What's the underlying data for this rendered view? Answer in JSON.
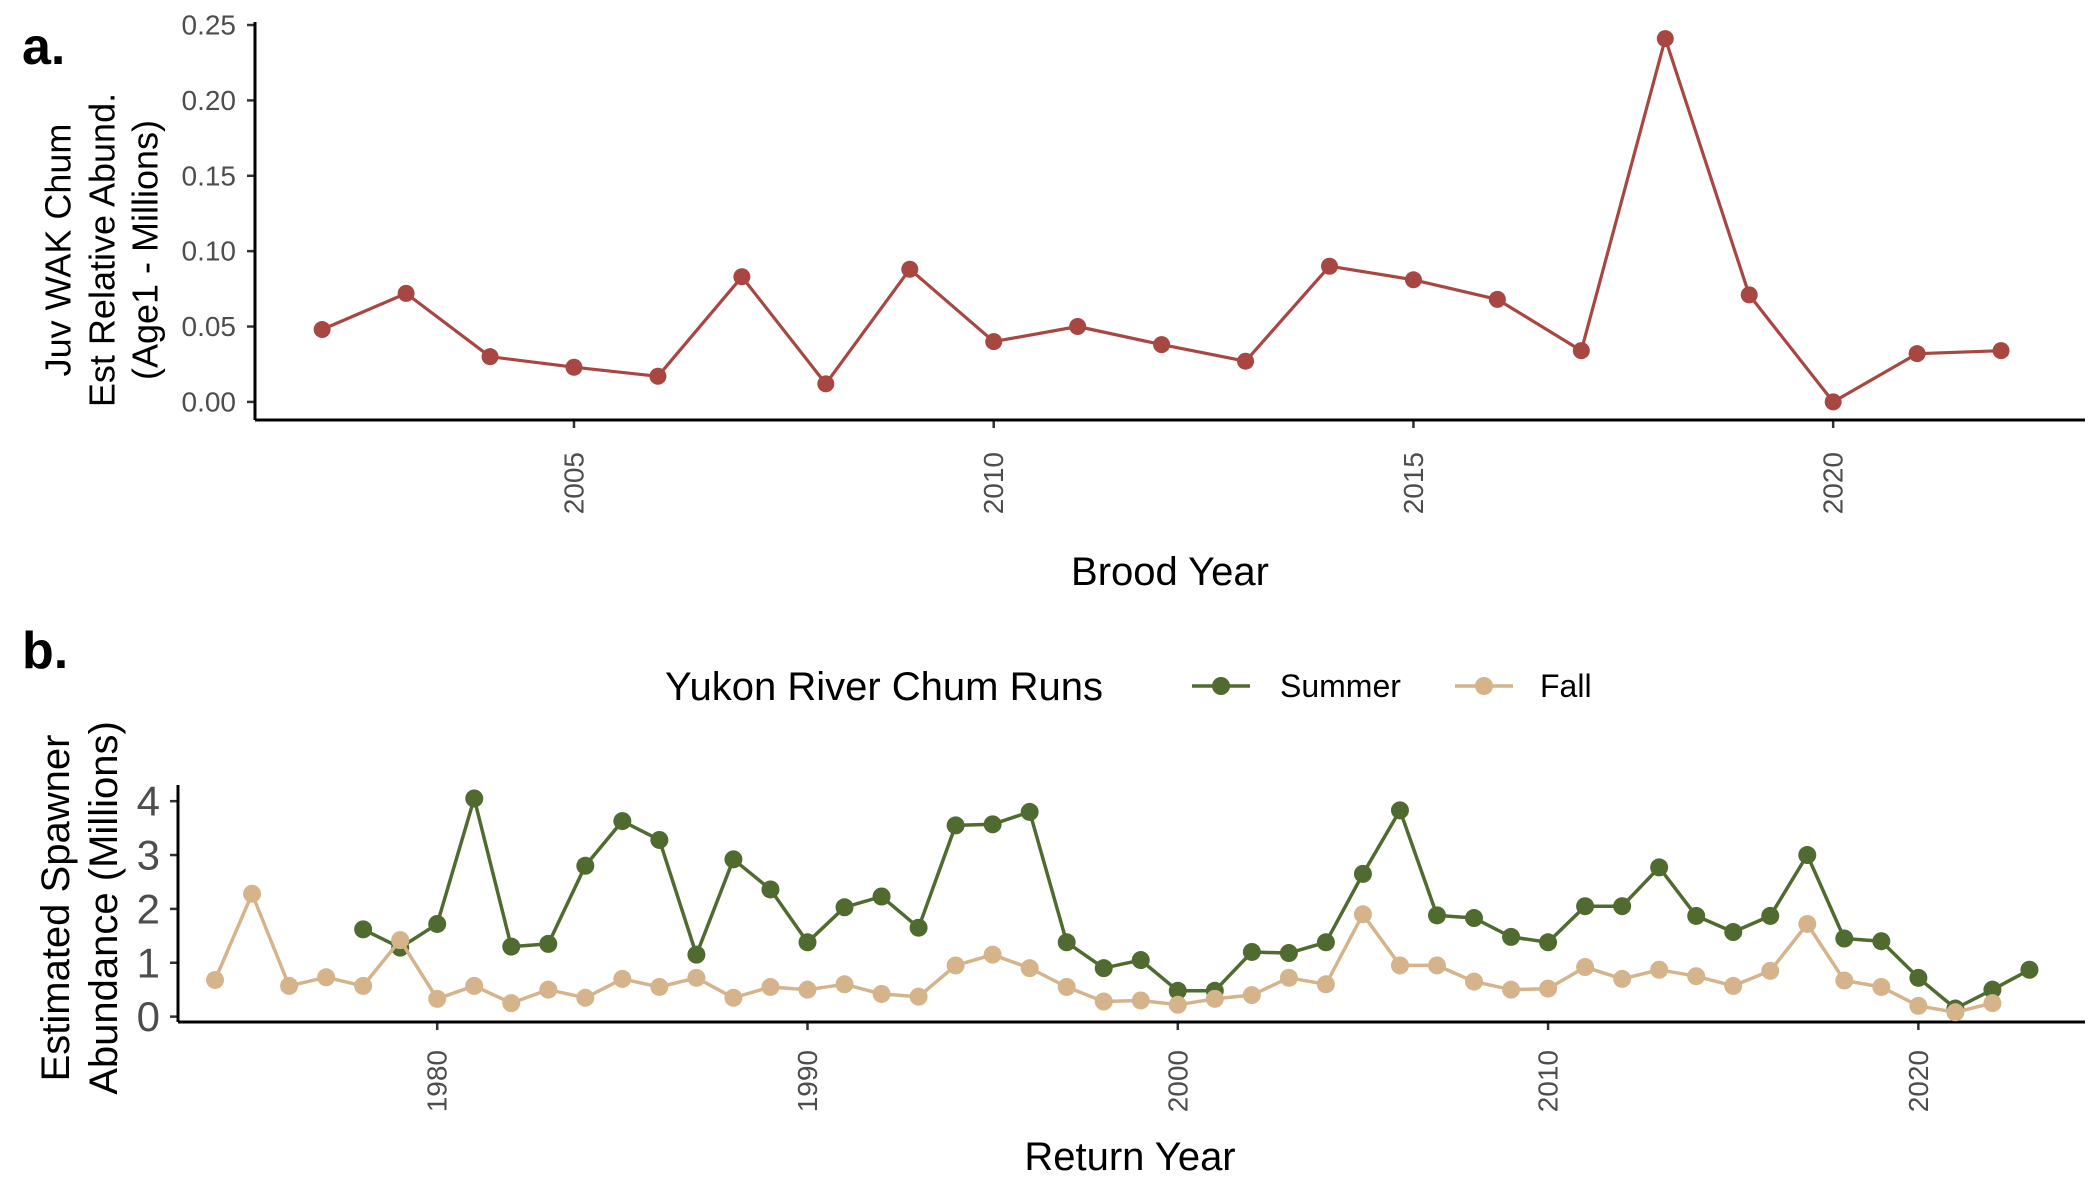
{
  "figure": {
    "panel_a_label": "a.",
    "panel_b_label": "b."
  },
  "chart_data": [
    {
      "type": "line",
      "panel": "a",
      "title": "",
      "xlabel": "Brood Year",
      "ylabel_lines": [
        "Juv WAK Chum",
        "Est Relative Abund.",
        "(Age1 - Millions)"
      ],
      "xlim": [
        2001.2,
        2023.0
      ],
      "ylim": [
        -0.012,
        0.252
      ],
      "x_ticks": [
        2005,
        2010,
        2015,
        2020
      ],
      "y_ticks": [
        0.0,
        0.05,
        0.1,
        0.15,
        0.2,
        0.25
      ],
      "y_tick_labels": [
        "0.00",
        "0.05",
        "0.10",
        "0.15",
        "0.20",
        "0.25"
      ],
      "grid": false,
      "series": [
        {
          "name": "",
          "color": "#a84642",
          "x": [
            2002,
            2003,
            2004,
            2005,
            2006,
            2007,
            2008,
            2009,
            2010,
            2011,
            2012,
            2013,
            2014,
            2015,
            2016,
            2017,
            2018,
            2019,
            2020,
            2021,
            2022
          ],
          "values": [
            0.048,
            0.072,
            0.03,
            0.023,
            0.017,
            0.083,
            0.012,
            0.088,
            0.04,
            0.05,
            0.038,
            0.027,
            0.09,
            0.081,
            0.068,
            0.034,
            0.241,
            0.071,
            0.0,
            0.032,
            0.034
          ]
        }
      ]
    },
    {
      "type": "line",
      "panel": "b",
      "title": "",
      "xlabel": "Return Year",
      "ylabel_lines": [
        "Estimated Spawner",
        "Abundance (Millions)"
      ],
      "xlim": [
        1973.0,
        2024.5
      ],
      "ylim": [
        -0.1,
        4.3
      ],
      "x_ticks": [
        1980,
        1990,
        2000,
        2010,
        2020
      ],
      "y_ticks": [
        0,
        1,
        2,
        3,
        4
      ],
      "grid": false,
      "legend": {
        "title": "Yukon River Chum Runs",
        "position": "top"
      },
      "series": [
        {
          "name": "Summer",
          "color": "#4f6b2f",
          "x": [
            1978,
            1979,
            1980,
            1981,
            1982,
            1983,
            1984,
            1985,
            1986,
            1987,
            1988,
            1989,
            1990,
            1991,
            1992,
            1993,
            1994,
            1995,
            1996,
            1997,
            1998,
            1999,
            2000,
            2001,
            2002,
            2003,
            2004,
            2005,
            2006,
            2007,
            2008,
            2009,
            2010,
            2011,
            2012,
            2013,
            2014,
            2015,
            2016,
            2017,
            2018,
            2019,
            2020,
            2021,
            2022,
            2023
          ],
          "values": [
            1.62,
            1.28,
            1.72,
            4.05,
            1.3,
            1.35,
            2.8,
            3.63,
            3.28,
            1.15,
            2.92,
            2.36,
            1.38,
            2.03,
            2.23,
            1.65,
            3.55,
            3.57,
            3.8,
            1.38,
            0.9,
            1.05,
            0.48,
            0.48,
            1.2,
            1.18,
            1.38,
            2.65,
            3.83,
            1.88,
            1.83,
            1.48,
            1.38,
            2.05,
            2.05,
            2.77,
            1.87,
            1.57,
            1.87,
            3.0,
            1.45,
            1.4,
            0.72,
            0.15,
            0.5,
            0.87
          ]
        },
        {
          "name": "Fall",
          "color": "#d5b48c",
          "x": [
            1974,
            1975,
            1976,
            1977,
            1978,
            1979,
            1980,
            1981,
            1982,
            1983,
            1984,
            1985,
            1986,
            1987,
            1988,
            1989,
            1990,
            1991,
            1992,
            1993,
            1994,
            1995,
            1996,
            1997,
            1998,
            1999,
            2000,
            2001,
            2002,
            2003,
            2004,
            2005,
            2006,
            2007,
            2008,
            2009,
            2010,
            2011,
            2012,
            2013,
            2014,
            2015,
            2016,
            2017,
            2018,
            2019,
            2020,
            2021,
            2022
          ],
          "values": [
            0.68,
            2.28,
            0.57,
            0.73,
            0.57,
            1.42,
            0.33,
            0.57,
            0.25,
            0.5,
            0.35,
            0.7,
            0.55,
            0.72,
            0.35,
            0.55,
            0.5,
            0.6,
            0.42,
            0.37,
            0.95,
            1.15,
            0.9,
            0.55,
            0.28,
            0.3,
            0.22,
            0.33,
            0.4,
            0.72,
            0.6,
            1.9,
            0.95,
            0.95,
            0.65,
            0.5,
            0.52,
            0.92,
            0.7,
            0.87,
            0.75,
            0.57,
            0.85,
            1.72,
            0.67,
            0.55,
            0.2,
            0.08,
            0.25
          ]
        }
      ]
    }
  ]
}
